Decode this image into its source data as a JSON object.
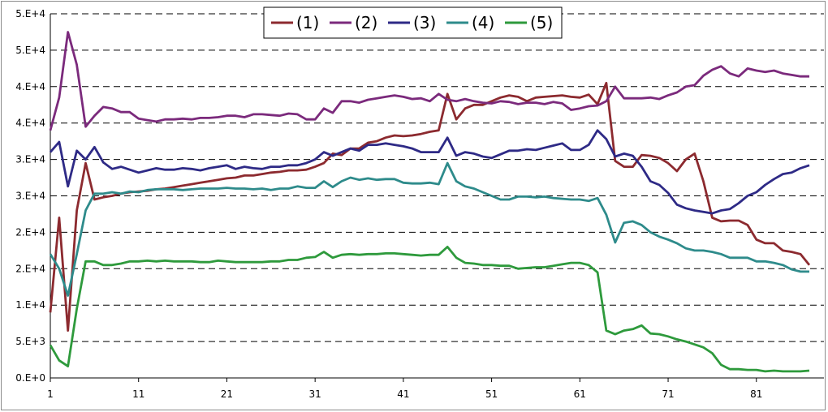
{
  "chart_data": {
    "type": "line",
    "x": [
      1,
      2,
      3,
      4,
      5,
      6,
      7,
      8,
      9,
      10,
      11,
      12,
      13,
      14,
      15,
      16,
      17,
      18,
      19,
      20,
      21,
      22,
      23,
      24,
      25,
      26,
      27,
      28,
      29,
      30,
      31,
      32,
      33,
      34,
      35,
      36,
      37,
      38,
      39,
      40,
      41,
      42,
      43,
      44,
      45,
      46,
      47,
      48,
      49,
      50,
      51,
      52,
      53,
      54,
      55,
      56,
      57,
      58,
      59,
      60,
      61,
      62,
      63,
      64,
      65,
      66,
      67,
      68,
      69,
      70,
      71,
      72,
      73,
      74,
      75,
      76,
      77,
      78,
      79,
      80,
      81,
      82,
      83,
      84,
      85,
      86,
      87
    ],
    "xticks": [
      1,
      11,
      21,
      31,
      41,
      51,
      61,
      71,
      81
    ],
    "xtick_labels": [
      "1",
      "11",
      "21",
      "31",
      "41",
      "51",
      "61",
      "71",
      "81"
    ],
    "yticks": [
      0,
      5000,
      10000,
      15000,
      20000,
      25000,
      30000,
      35000,
      40000,
      45000,
      50000
    ],
    "ytick_labels": [
      "0.E+0",
      "5.E+3",
      "1.E+4",
      "2.E+4",
      "2.E+4",
      "3.E+4",
      "3.E+4",
      "4.E+4",
      "4.E+4",
      "5.E+4",
      "5.E+4"
    ],
    "ylim": [
      0,
      50000
    ],
    "xlim": [
      1,
      87
    ],
    "grid": "horizontal dashed",
    "legend_position": "top-center",
    "series": [
      {
        "name": "(1)",
        "color": "#8c2a2f",
        "values": [
          9000,
          22000,
          6500,
          23000,
          29500,
          24500,
          24800,
          25000,
          25300,
          25500,
          25600,
          25700,
          25900,
          26000,
          26200,
          26400,
          26600,
          26800,
          27000,
          27200,
          27400,
          27500,
          27800,
          27800,
          28000,
          28200,
          28300,
          28500,
          28500,
          28600,
          29000,
          29500,
          30800,
          30600,
          31500,
          31500,
          32300,
          32500,
          33000,
          33300,
          33200,
          33300,
          33500,
          33800,
          34000,
          39000,
          35500,
          37000,
          37500,
          37500,
          38000,
          38500,
          38800,
          38600,
          38000,
          38500,
          38600,
          38700,
          38800,
          38600,
          38500,
          38900,
          37600,
          40500,
          29800,
          29000,
          29000,
          30600,
          30500,
          30200,
          29500,
          28400,
          30000,
          30800,
          27000,
          22000,
          21500,
          21600,
          21600,
          21000,
          19000,
          18500,
          18500,
          17500,
          17300,
          17000,
          15500
        ]
      },
      {
        "name": "(2)",
        "color": "#7b2a7c",
        "values": [
          34000,
          38500,
          47500,
          43000,
          34500,
          36000,
          37200,
          37000,
          36500,
          36500,
          35600,
          35400,
          35200,
          35500,
          35500,
          35600,
          35500,
          35700,
          35700,
          35800,
          36000,
          36000,
          35800,
          36200,
          36200,
          36100,
          36000,
          36300,
          36200,
          35500,
          35500,
          37000,
          36400,
          38000,
          38000,
          37800,
          38200,
          38400,
          38600,
          38800,
          38600,
          38300,
          38400,
          38000,
          39000,
          38200,
          38000,
          38300,
          38000,
          37800,
          37700,
          38000,
          37900,
          37600,
          37800,
          37800,
          37600,
          37900,
          37700,
          36800,
          37000,
          37300,
          37400,
          38000,
          40000,
          38400,
          38400,
          38400,
          38500,
          38300,
          38800,
          39200,
          40000,
          40200,
          41500,
          42300,
          42800,
          41800,
          41400,
          42500,
          42200,
          42000,
          42200,
          41800,
          41600,
          41400,
          41400
        ]
      },
      {
        "name": "(3)",
        "color": "#2e2a86",
        "values": [
          31000,
          32400,
          26300,
          31200,
          30000,
          31700,
          29600,
          28700,
          29000,
          28600,
          28200,
          28500,
          28800,
          28600,
          28600,
          28800,
          28700,
          28500,
          28800,
          29000,
          29200,
          28700,
          29000,
          28800,
          28700,
          29000,
          29000,
          29200,
          29200,
          29500,
          30000,
          31000,
          30500,
          31000,
          31500,
          31200,
          32000,
          32000,
          32200,
          32000,
          31800,
          31500,
          31000,
          31000,
          31000,
          33000,
          30500,
          31000,
          30800,
          30400,
          30200,
          30700,
          31200,
          31200,
          31400,
          31300,
          31600,
          31900,
          32200,
          31300,
          31300,
          32000,
          34000,
          32800,
          30400,
          30800,
          30500,
          29000,
          27000,
          26500,
          25400,
          23800,
          23300,
          23000,
          22800,
          22600,
          23000,
          23200,
          24000,
          25000,
          25500,
          26500,
          27300,
          28000,
          28200,
          28800,
          29200
        ]
      },
      {
        "name": "(4)",
        "color": "#2e8b8b",
        "values": [
          17000,
          15000,
          11300,
          17000,
          23000,
          25300,
          25300,
          25500,
          25300,
          25600,
          25500,
          25800,
          25900,
          25900,
          25900,
          25800,
          25900,
          26000,
          26000,
          26000,
          26100,
          26000,
          26000,
          25900,
          26000,
          25800,
          26000,
          26000,
          26300,
          26100,
          26100,
          27000,
          26200,
          27000,
          27500,
          27200,
          27400,
          27200,
          27300,
          27300,
          26800,
          26700,
          26700,
          26800,
          26600,
          29500,
          27000,
          26300,
          26000,
          25500,
          25000,
          24500,
          24500,
          24900,
          24900,
          24800,
          24900,
          24700,
          24600,
          24500,
          24500,
          24300,
          24700,
          22400,
          18600,
          21300,
          21500,
          21000,
          20000,
          19400,
          19000,
          18500,
          17800,
          17500,
          17500,
          17300,
          17000,
          16500,
          16500,
          16500,
          16000,
          16000,
          15800,
          15500,
          14900,
          14600,
          14600
        ]
      },
      {
        "name": "(5)",
        "color": "#2e9a3c",
        "values": [
          4500,
          2400,
          1600,
          9500,
          16000,
          16000,
          15500,
          15500,
          15700,
          16000,
          16000,
          16100,
          16000,
          16100,
          16000,
          16000,
          16000,
          15900,
          15900,
          16100,
          16000,
          15900,
          15900,
          15900,
          15900,
          16000,
          16000,
          16200,
          16200,
          16500,
          16600,
          17300,
          16500,
          16900,
          17000,
          16900,
          17000,
          17000,
          17100,
          17100,
          17000,
          16900,
          16800,
          16900,
          16900,
          18000,
          16500,
          15800,
          15700,
          15500,
          15500,
          15400,
          15400,
          15000,
          15100,
          15200,
          15200,
          15400,
          15600,
          15800,
          15800,
          15500,
          14500,
          6500,
          6000,
          6500,
          6700,
          7200,
          6100,
          6000,
          5700,
          5300,
          5000,
          4600,
          4200,
          3400,
          1800,
          1200,
          1200,
          1100,
          1100,
          900,
          1000,
          900,
          900,
          900,
          1000
        ]
      }
    ]
  }
}
